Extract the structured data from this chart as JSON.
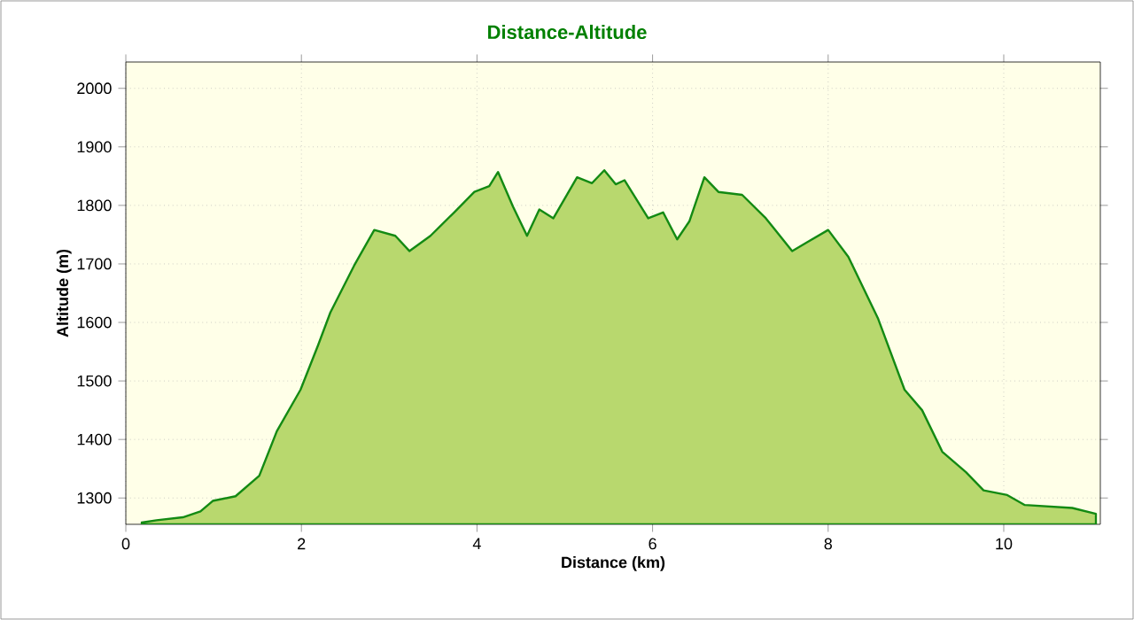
{
  "chart_data": {
    "type": "area",
    "title": "Distance-Altitude",
    "xlabel": "Distance (km)",
    "ylabel": "Altitude (m)",
    "xlim": [
      0,
      11.1
    ],
    "ylim": [
      1255,
      2045
    ],
    "xticks": [
      0,
      2,
      4,
      6,
      8,
      10
    ],
    "yticks": [
      1300,
      1400,
      1500,
      1600,
      1700,
      1800,
      1900,
      2000
    ],
    "grid": true,
    "legend": false,
    "series": [
      {
        "color": "#138a13",
        "x": [
          0.18,
          0.35,
          0.65,
          0.85,
          0.99,
          1.25,
          1.52,
          1.72,
          1.99,
          2.19,
          2.33,
          2.6,
          2.83,
          3.07,
          3.23,
          3.47,
          3.74,
          3.97,
          4.14,
          4.24,
          4.41,
          4.57,
          4.71,
          4.87,
          5.14,
          5.31,
          5.45,
          5.58,
          5.68,
          5.95,
          6.12,
          6.28,
          6.42,
          6.59,
          6.75,
          7.02,
          7.29,
          7.59,
          7.76,
          8.0,
          8.23,
          8.57,
          8.87,
          9.07,
          9.3,
          9.57,
          9.77,
          10.04,
          10.24,
          10.78,
          11.05
        ],
        "values": [
          1258,
          1262,
          1267,
          1277,
          1295,
          1303,
          1338,
          1414,
          1485,
          1561,
          1617,
          1697,
          1758,
          1748,
          1722,
          1748,
          1788,
          1823,
          1833,
          1857,
          1798,
          1748,
          1793,
          1778,
          1848,
          1838,
          1860,
          1836,
          1843,
          1778,
          1788,
          1742,
          1773,
          1848,
          1823,
          1818,
          1778,
          1722,
          1737,
          1758,
          1712,
          1606,
          1485,
          1450,
          1379,
          1344,
          1313,
          1305,
          1288,
          1283,
          1273
        ]
      }
    ]
  }
}
